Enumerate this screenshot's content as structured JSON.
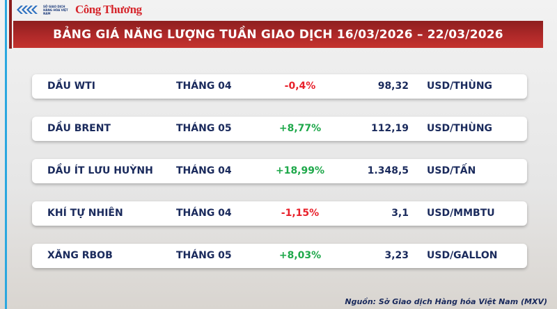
{
  "header": {
    "logo_exchange": "SỞ GIAO DỊCH HÀNG HÓA VIỆT NAM",
    "logo_newspaper": "Công Thương",
    "title": "BẢNG GIÁ NĂNG LƯỢNG TUẦN GIAO DỊCH 16/03/2026 – 22/03/2026"
  },
  "colors": {
    "title_bg": "#b22a2a",
    "text": "#1a2a5c",
    "negative": "#e8202a",
    "positive": "#1ea84a",
    "accent_blue": "#2aa7df"
  },
  "rows": [
    {
      "name": "DẦU WTI",
      "month": "THÁNG 04",
      "change": "-0,4%",
      "direction": "negative",
      "price": "98,32",
      "unit": "USD/THÙNG"
    },
    {
      "name": "DẦU BRENT",
      "month": "THÁNG 05",
      "change": "+8,77%",
      "direction": "positive",
      "price": "112,19",
      "unit": "USD/THÙNG"
    },
    {
      "name": "DẦU ÍT LƯU HUỲNH",
      "month": "THÁNG 04",
      "change": "+18,99%",
      "direction": "positive",
      "price": "1.348,5",
      "unit": "USD/TẤN"
    },
    {
      "name": "KHÍ TỰ NHIÊN",
      "month": "THÁNG 04",
      "change": "-1,15%",
      "direction": "negative",
      "price": "3,1",
      "unit": "USD/MMBTU"
    },
    {
      "name": "XĂNG RBOB",
      "month": "THÁNG 05",
      "change": "+8,03%",
      "direction": "positive",
      "price": "3,23",
      "unit": "USD/GALLON"
    }
  ],
  "source": "Nguồn: Sở Giao dịch Hàng hóa Việt Nam (MXV)"
}
